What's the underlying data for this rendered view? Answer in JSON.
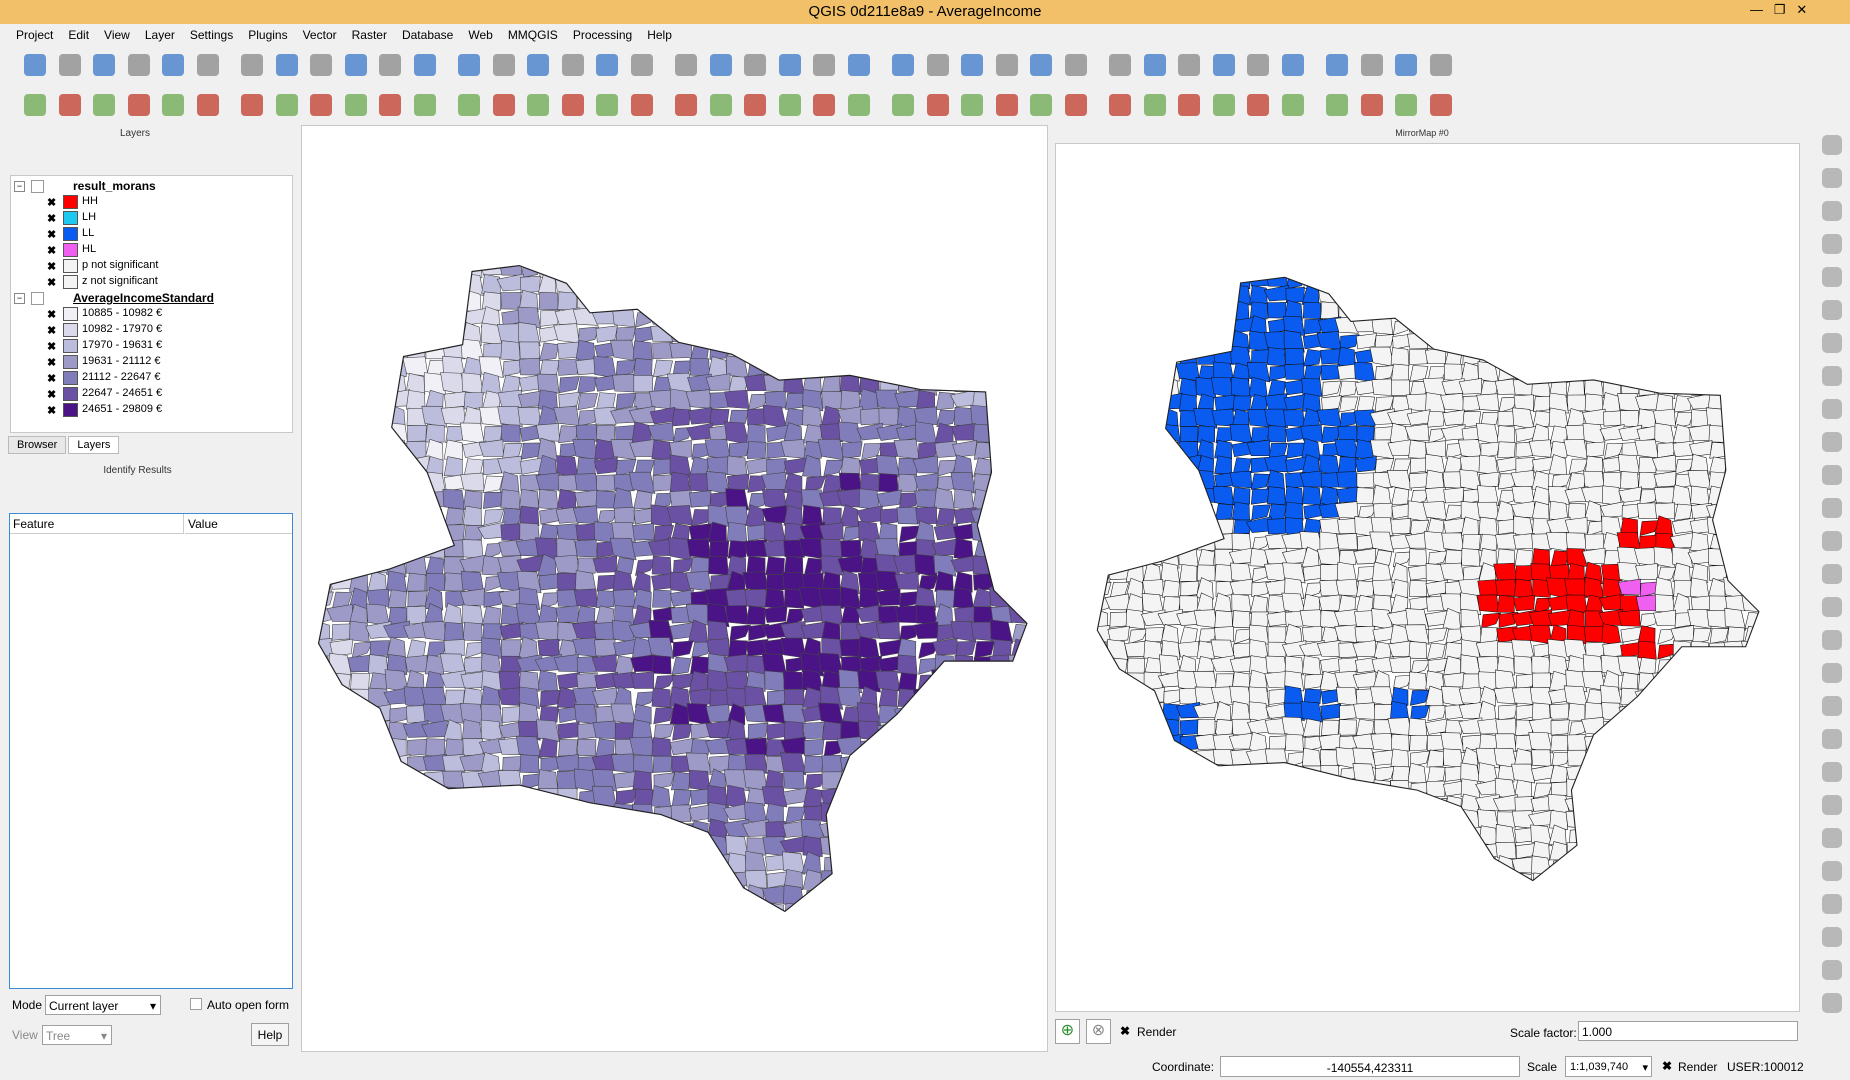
{
  "window": {
    "title": "QGIS 0d211e8a9 - AverageIncome"
  },
  "menu": [
    "Project",
    "Edit",
    "View",
    "Layer",
    "Settings",
    "Plugins",
    "Vector",
    "Raster",
    "Database",
    "Web",
    "MMQGIS",
    "Processing",
    "Help"
  ],
  "layers_panel": {
    "title": "Layers",
    "groups": [
      {
        "name": "result_morans",
        "items": [
          {
            "label": "HH",
            "color": "#ff0000"
          },
          {
            "label": "LH",
            "color": "#1ec8f0"
          },
          {
            "label": "LL",
            "color": "#0a5cf0"
          },
          {
            "label": "HL",
            "color": "#f060f0"
          },
          {
            "label": "p not significant",
            "color": "#f4f4f4"
          },
          {
            "label": "z not significant",
            "color": "#f4f4f4"
          }
        ]
      },
      {
        "name": "AverageIncomeStandard",
        "items": [
          {
            "label": "10885 - 10982 €",
            "color": "#f2f0f7"
          },
          {
            "label": "10982 - 17970 €",
            "color": "#dadaeb"
          },
          {
            "label": "17970 - 19631 €",
            "color": "#bcbddc"
          },
          {
            "label": "19631 - 21112 €",
            "color": "#9e9ac8"
          },
          {
            "label": "21112 - 22647 €",
            "color": "#807dba"
          },
          {
            "label": "22647 - 24651 €",
            "color": "#6a51a3"
          },
          {
            "label": "24651 - 29809 €",
            "color": "#4a1486"
          }
        ]
      }
    ]
  },
  "tabs": [
    "Browser",
    "Layers"
  ],
  "identify": {
    "title": "Identify Results",
    "columns": [
      "Feature",
      "Value"
    ],
    "mode_label": "Mode",
    "mode": "Current layer",
    "auto_open": "Auto open form",
    "view_label": "View",
    "view": "Tree",
    "help": "Help"
  },
  "mirror_map": {
    "title": "MirrorMap #0",
    "render": "Render",
    "scale_factor_label": "Scale factor:",
    "scale_factor": "1.000"
  },
  "status": {
    "coordinate_label": "Coordinate:",
    "coordinate": "-140554,423311",
    "scale_label": "Scale",
    "scale": "1:1,039,740",
    "render": "Render",
    "user": "USER:100012"
  }
}
